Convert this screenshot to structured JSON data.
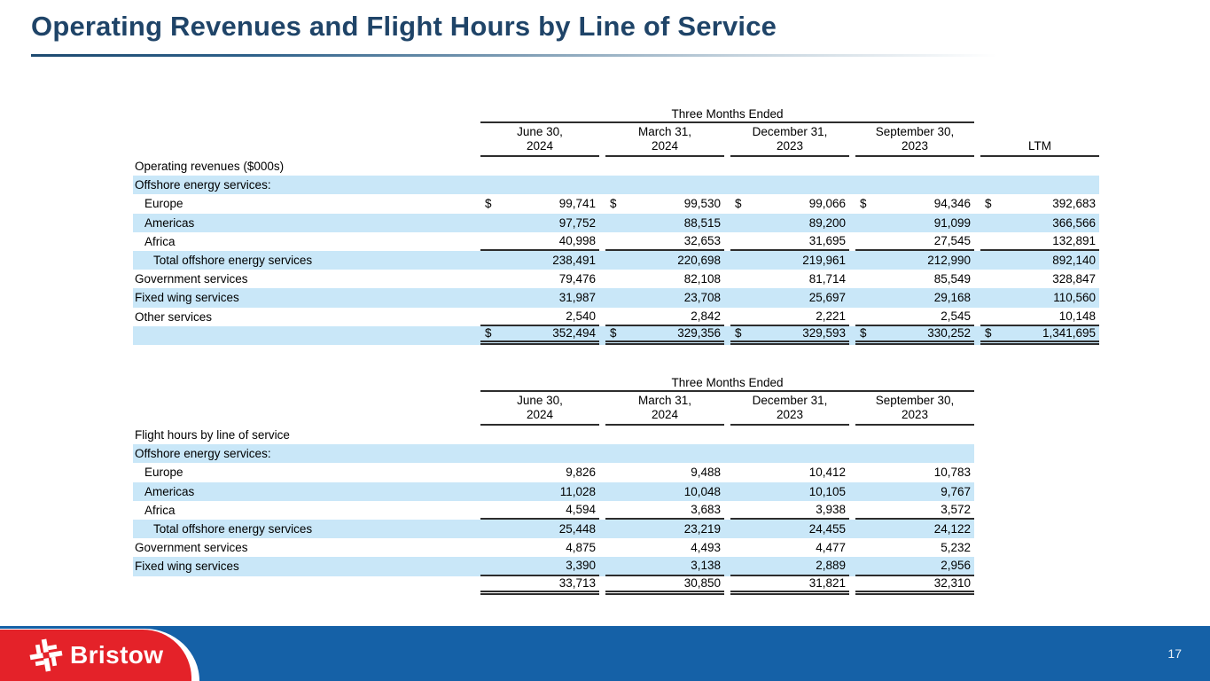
{
  "slide": {
    "title": "Operating Revenues and Flight Hours by Line of Service"
  },
  "footer": {
    "logo_text": "Bristow",
    "page_number": "17"
  },
  "colors": {
    "title_text": "#1f4468",
    "row_stripe": "#c9e7f8",
    "footer_bar": "#1561a7",
    "logo_red": "#e42229"
  },
  "tables": [
    {
      "name": "operating-revenues",
      "span_header": "Three Months Ended",
      "currency": "$",
      "columns": [
        [
          "June 30,",
          "2024"
        ],
        [
          "March 31,",
          "2024"
        ],
        [
          "December 31,",
          "2023"
        ],
        [
          "September 30,",
          "2023"
        ]
      ],
      "extra_column": "LTM",
      "rows": [
        {
          "label": "Operating revenues ($000s)",
          "indent": 0,
          "shaded": false,
          "values": []
        },
        {
          "label": "Offshore energy services:",
          "indent": 0,
          "shaded": true,
          "values": []
        },
        {
          "label": "Europe",
          "indent": 1,
          "shaded": false,
          "dollar": true,
          "values": [
            "99,741",
            "99,530",
            "99,066",
            "94,346",
            "392,683"
          ]
        },
        {
          "label": "Americas",
          "indent": 1,
          "shaded": true,
          "values": [
            "97,752",
            "88,515",
            "89,200",
            "91,099",
            "366,566"
          ]
        },
        {
          "label": "Africa",
          "indent": 1,
          "shaded": false,
          "underline": "single",
          "values": [
            "40,998",
            "32,653",
            "31,695",
            "27,545",
            "132,891"
          ]
        },
        {
          "label": "Total offshore energy services",
          "indent": 2,
          "shaded": true,
          "values": [
            "238,491",
            "220,698",
            "219,961",
            "212,990",
            "892,140"
          ]
        },
        {
          "label": "Government services",
          "indent": 0,
          "shaded": false,
          "values": [
            "79,476",
            "82,108",
            "81,714",
            "85,549",
            "328,847"
          ]
        },
        {
          "label": "Fixed wing services",
          "indent": 0,
          "shaded": true,
          "values": [
            "31,987",
            "23,708",
            "25,697",
            "29,168",
            "110,560"
          ]
        },
        {
          "label": "Other services",
          "indent": 0,
          "shaded": false,
          "underline": "single",
          "values": [
            "2,540",
            "2,842",
            "2,221",
            "2,545",
            "10,148"
          ]
        },
        {
          "label": "",
          "indent": 0,
          "shaded": true,
          "dollar": true,
          "underline": "double",
          "values": [
            "352,494",
            "329,356",
            "329,593",
            "330,252",
            "1,341,695"
          ]
        }
      ]
    },
    {
      "name": "flight-hours",
      "span_header": "Three Months Ended",
      "currency": "$",
      "columns": [
        [
          "June 30,",
          "2024"
        ],
        [
          "March 31,",
          "2024"
        ],
        [
          "December 31,",
          "2023"
        ],
        [
          "September 30,",
          "2023"
        ]
      ],
      "extra_column": null,
      "rows": [
        {
          "label": "Flight hours by line of service",
          "indent": 0,
          "shaded": false,
          "values": []
        },
        {
          "label": "Offshore energy services:",
          "indent": 0,
          "shaded": true,
          "values": []
        },
        {
          "label": "Europe",
          "indent": 1,
          "shaded": false,
          "values": [
            "9,826",
            "9,488",
            "10,412",
            "10,783"
          ]
        },
        {
          "label": "Americas",
          "indent": 1,
          "shaded": true,
          "values": [
            "11,028",
            "10,048",
            "10,105",
            "9,767"
          ]
        },
        {
          "label": "Africa",
          "indent": 1,
          "shaded": false,
          "underline": "single",
          "values": [
            "4,594",
            "3,683",
            "3,938",
            "3,572"
          ]
        },
        {
          "label": "Total offshore energy services",
          "indent": 2,
          "shaded": true,
          "values": [
            "25,448",
            "23,219",
            "24,455",
            "24,122"
          ]
        },
        {
          "label": "Government services",
          "indent": 0,
          "shaded": false,
          "values": [
            "4,875",
            "4,493",
            "4,477",
            "5,232"
          ]
        },
        {
          "label": "Fixed wing services",
          "indent": 0,
          "shaded": true,
          "underline": "single",
          "values": [
            "3,390",
            "3,138",
            "2,889",
            "2,956"
          ]
        },
        {
          "label": "",
          "indent": 0,
          "shaded": false,
          "underline": "double",
          "values": [
            "33,713",
            "30,850",
            "31,821",
            "32,310"
          ]
        }
      ]
    }
  ]
}
